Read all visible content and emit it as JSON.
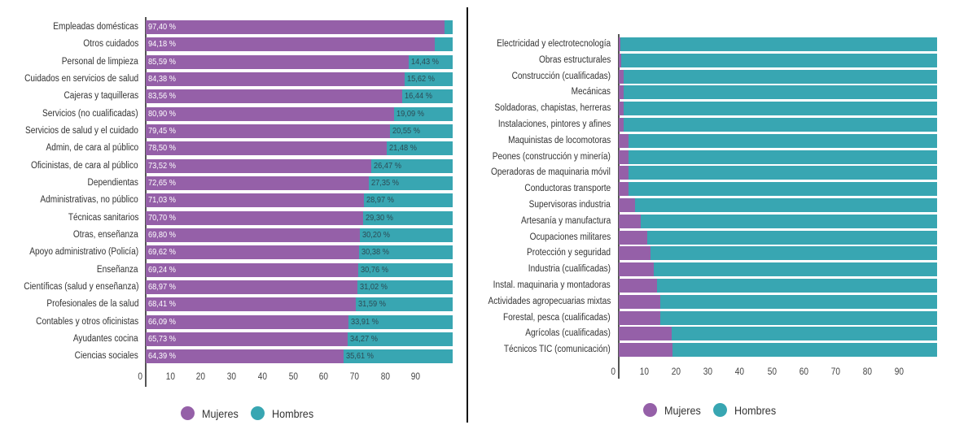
{
  "colors": {
    "women": "#9560a8",
    "men": "#38a6b2"
  },
  "chart_data": [
    {
      "type": "bar",
      "orientation": "horizontal",
      "stacked": true,
      "title": "",
      "xlabel": "",
      "ylabel": "",
      "xlim": [
        0,
        100
      ],
      "x_ticks": [
        "0",
        "10",
        "20",
        "30",
        "40",
        "50",
        "60",
        "70",
        "80",
        "90"
      ],
      "legend": {
        "position": "bottom",
        "entries": [
          "Mujeres",
          "Hombres"
        ]
      },
      "categories": [
        "Empleadas domésticas",
        "Otros cuidados",
        "Personal de limpieza",
        "Cuidados en servicios de salud",
        "Cajeras y taquilleras",
        "Servicios (no cualificadas)",
        "Servicios de salud y el cuidado",
        "Admin, de cara al público",
        "Oficinistas, de cara al público",
        "Dependientas",
        "Administrativas, no público",
        "Técnicas sanitarios",
        "Otras, enseñanza",
        "Apoyo administrativo (Policía)",
        "Enseñanza",
        "Científicas (salud y enseñanza)",
        "Profesionales de la salud",
        "Contables y otros oficinistas",
        "Ayudantes cocina",
        "Ciencias sociales"
      ],
      "series": [
        {
          "name": "Mujeres",
          "values": [
            97.4,
            94.18,
            85.59,
            84.38,
            83.56,
            80.9,
            79.45,
            78.5,
            73.52,
            72.65,
            71.03,
            70.7,
            69.8,
            69.62,
            69.24,
            68.97,
            68.41,
            66.09,
            65.73,
            64.39
          ],
          "labels": [
            "97,40 %",
            "94,18 %",
            "85,59 %",
            "84,38 %",
            "83,56 %",
            "80,90 %",
            "79,45 %",
            "78,50 %",
            "73,52 %",
            "72,65 %",
            "71,03 %",
            "70,70 %",
            "69,80 %",
            "69,62 %",
            "69,24 %",
            "68,97 %",
            "68,41 %",
            "66,09 %",
            "65,73 %",
            "64,39 %"
          ]
        },
        {
          "name": "Hombres",
          "values": [
            2.6,
            5.82,
            14.43,
            15.62,
            16.44,
            19.09,
            20.55,
            21.48,
            26.47,
            27.35,
            28.97,
            29.3,
            30.2,
            30.38,
            30.76,
            31.02,
            31.59,
            33.91,
            34.27,
            35.61
          ],
          "labels": [
            "",
            "",
            "14,43 %",
            "15,62 %",
            "16,44 %",
            "19,09 %",
            "20,55 %",
            "21,48 %",
            "26,47 %",
            "27,35 %",
            "28,97 %",
            "29,30 %",
            "30,20 %",
            "30,38 %",
            "30,76 %",
            "31,02 %",
            "31,59 %",
            "33,91 %",
            "34,27 %",
            "35,61 %"
          ]
        }
      ]
    },
    {
      "type": "bar",
      "orientation": "horizontal",
      "stacked": true,
      "title": "",
      "xlabel": "",
      "ylabel": "",
      "xlim": [
        0,
        100
      ],
      "x_ticks": [
        "0",
        "10",
        "20",
        "30",
        "40",
        "50",
        "60",
        "70",
        "80",
        "90"
      ],
      "legend": {
        "position": "bottom",
        "entries": [
          "Mujeres",
          "Hombres"
        ]
      },
      "categories": [
        "Electricidad y electrotecnología",
        "Obras estructurales",
        "Construcción (cualificadas)",
        "Mecánicas",
        "Soldadoras, chapistas, herreras",
        "Instalaciones, pintores y afines",
        "Maquinistas de locomotoras",
        "Peones (construcción y minería)",
        "Operadoras de maquinaria móvil",
        "Conductoras transporte",
        "Supervisoras industria",
        "Artesanía y manufactura",
        "Ocupaciones militares",
        "Protección y seguridad",
        "Industria (cualificadas)",
        "Instal. maquinaria y montadoras",
        "Actividades agropecuarias mixtas",
        "Forestal, pesca (cualificadas)",
        "Agrícolas (cualificadas)",
        "Técnicos TIC (comunicación)"
      ],
      "series": [
        {
          "name": "Mujeres",
          "values": [
            0.5,
            0.7,
            1.5,
            1.5,
            1.5,
            1.5,
            3.0,
            3.0,
            3.0,
            3.0,
            5.0,
            7.0,
            9.0,
            10.0,
            11.0,
            12.0,
            13.0,
            13.0,
            16.5,
            17.0
          ]
        },
        {
          "name": "Hombres",
          "values": [
            99.5,
            99.3,
            98.5,
            98.5,
            98.5,
            98.5,
            97.0,
            97.0,
            97.0,
            97.0,
            95.0,
            93.0,
            91.0,
            90.0,
            89.0,
            88.0,
            87.0,
            87.0,
            83.5,
            83.0
          ]
        }
      ]
    }
  ]
}
